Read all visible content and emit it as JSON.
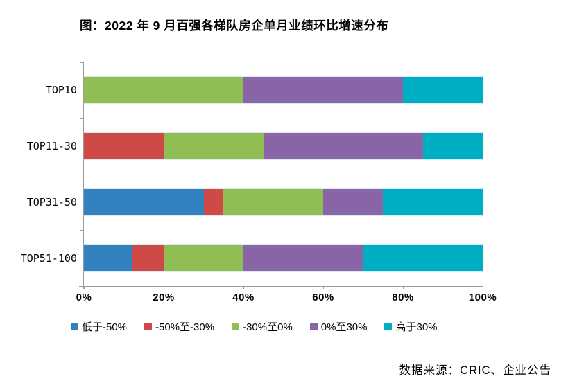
{
  "title": "图：2022 年 9 月百强各梯队房企单月业绩环比增速分布",
  "source": "数据来源：CRIC、企业公告",
  "colors": {
    "axis": "#9b9b9b",
    "background": "#ffffff",
    "text": "#000000"
  },
  "chart_data": {
    "type": "bar",
    "subtype": "horizontal-stacked",
    "title": "图：2022 年 9 月百强各梯队房企单月业绩环比增速分布",
    "categories": [
      "TOP10",
      "TOP11-30",
      "TOP31-50",
      "TOP51-100"
    ],
    "series": [
      {
        "name": "低于-50%",
        "color": "#3382BF",
        "values": [
          0,
          0,
          30,
          12
        ]
      },
      {
        "name": "-50%至-30%",
        "color": "#CF4A46",
        "values": [
          0,
          20,
          5,
          8
        ]
      },
      {
        "name": "-30%至0%",
        "color": "#90BE55",
        "values": [
          40,
          25,
          25,
          20
        ]
      },
      {
        "name": "0%至30%",
        "color": "#8964A6",
        "values": [
          40,
          40,
          15,
          30
        ]
      },
      {
        "name": "高于30%",
        "color": "#00AEC3",
        "values": [
          20,
          15,
          25,
          30
        ]
      }
    ],
    "x_ticks": [
      "0%",
      "20%",
      "40%",
      "60%",
      "80%",
      "100%"
    ],
    "xlim": [
      0,
      100
    ],
    "grid": false,
    "legend_position": "bottom"
  }
}
